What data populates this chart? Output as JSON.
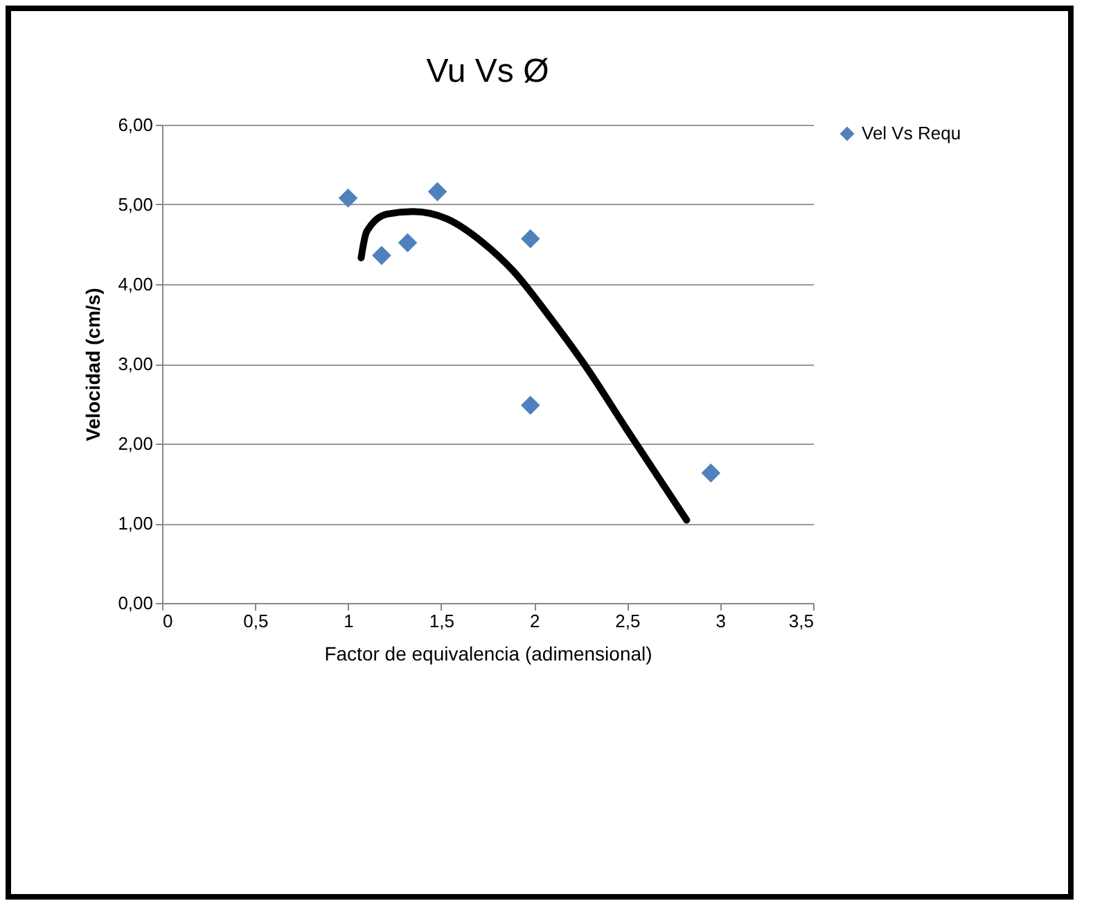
{
  "chart_data": {
    "type": "scatter",
    "title": "Vu Vs Ø",
    "xlabel": "Factor de equivalencia (adimensional)",
    "ylabel": "Velocidad (cm/s)",
    "x": [
      1.0,
      1.18,
      1.32,
      1.48,
      1.98,
      1.98,
      2.95
    ],
    "series": [
      {
        "name": "Vel Vs Requ",
        "color": "#4f81bd",
        "marker": "diamond",
        "values": [
          5.08,
          4.36,
          4.52,
          5.16,
          4.57,
          2.48,
          1.63
        ]
      },
      {
        "type": "line",
        "color": "#000000",
        "marker": "none",
        "x": [
          1.07,
          1.1,
          1.21,
          1.35,
          1.53,
          1.72,
          1.89,
          2.08,
          2.28,
          2.5,
          2.82
        ],
        "values": [
          4.33,
          4.66,
          4.88,
          4.91,
          4.82,
          4.53,
          4.16,
          3.6,
          2.96,
          2.17,
          1.04
        ]
      }
    ],
    "xlim": [
      0,
      3.5
    ],
    "xticks": [
      0,
      {
        "value": 0.5,
        "label": "0,5"
      },
      1,
      {
        "value": 1.5,
        "label": "1,5"
      },
      2,
      {
        "value": 2.5,
        "label": "2,5"
      },
      3,
      {
        "value": 3.5,
        "label": "3,5"
      }
    ],
    "ylim": [
      0,
      6
    ],
    "yticks": [
      {
        "value": 0,
        "label": "0,00"
      },
      {
        "value": 1,
        "label": "1,00"
      },
      {
        "value": 2,
        "label": "2,00"
      },
      {
        "value": 3,
        "label": "3,00"
      },
      {
        "value": 4,
        "label": "4,00"
      },
      {
        "value": 5,
        "label": "5,00"
      },
      {
        "value": 6,
        "label": "6,00"
      }
    ],
    "grid": "y",
    "legend": "right"
  }
}
